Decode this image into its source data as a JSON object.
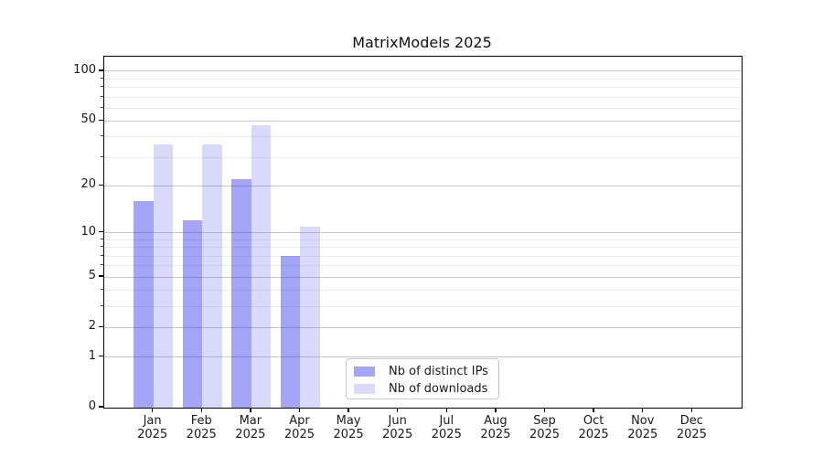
{
  "title": "MatrixModels 2025",
  "chart_data": {
    "type": "bar",
    "title": "MatrixModels 2025",
    "x_categories": [
      {
        "month": "Jan",
        "year": "2025"
      },
      {
        "month": "Feb",
        "year": "2025"
      },
      {
        "month": "Mar",
        "year": "2025"
      },
      {
        "month": "Apr",
        "year": "2025"
      },
      {
        "month": "May",
        "year": "2025"
      },
      {
        "month": "Jun",
        "year": "2025"
      },
      {
        "month": "Jul",
        "year": "2025"
      },
      {
        "month": "Aug",
        "year": "2025"
      },
      {
        "month": "Sep",
        "year": "2025"
      },
      {
        "month": "Oct",
        "year": "2025"
      },
      {
        "month": "Nov",
        "year": "2025"
      },
      {
        "month": "Dec",
        "year": "2025"
      }
    ],
    "series": [
      {
        "name": "Nb of distinct IPs",
        "color": "rgba(30,30,235,0.40)",
        "values": [
          16,
          12,
          22,
          7,
          null,
          null,
          null,
          null,
          null,
          null,
          null,
          null
        ]
      },
      {
        "name": "Nb of downloads",
        "color": "rgba(30,30,235,0.17)",
        "values": [
          36,
          36,
          47,
          11,
          null,
          null,
          null,
          null,
          null,
          null,
          null,
          null
        ]
      }
    ],
    "y_axis": {
      "scale": "log-like (log1p)",
      "ticks": [
        0,
        1,
        2,
        5,
        10,
        20,
        50,
        100
      ],
      "minor_ticks": [
        3,
        4,
        6,
        7,
        8,
        9,
        30,
        40,
        60,
        70,
        80,
        90
      ],
      "range_max": 122
    },
    "grid": true,
    "legend_position": "lower center-left"
  },
  "colors": {
    "distinct_ips_bar": "rgba(30,30,235,0.40)",
    "downloads_bar": "rgba(30,30,235,0.17)",
    "grid_major": "#c9c9c9",
    "grid_minor": "#ececec"
  }
}
